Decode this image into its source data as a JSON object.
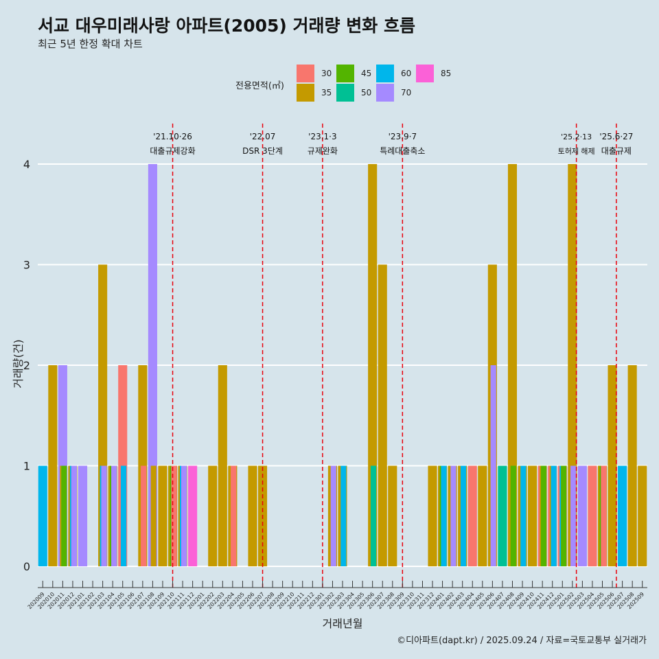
{
  "title": "서교 대우미래사랑 아파트(2005) 거래량 변화 흐름",
  "subtitle": "최근 5년 한정 확대 차트",
  "caption": "©디아파트(dapt.kr) / 2025.09.24 / 자료=국토교통부 실거래가",
  "legend": {
    "title": "전용면적(㎡)",
    "items": [
      {
        "label": "30",
        "color": "#f8766d"
      },
      {
        "label": "35",
        "color": "#c49a00"
      },
      {
        "label": "45",
        "color": "#53b400"
      },
      {
        "label": "50",
        "color": "#00c094"
      },
      {
        "label": "60",
        "color": "#00b6eb"
      },
      {
        "label": "70",
        "color": "#a58aff"
      },
      {
        "label": "85",
        "color": "#fb61d7"
      }
    ]
  },
  "chart_data": {
    "type": "bar",
    "title": "서교 대우미래사랑 아파트(2005) 거래량 변화 흐름",
    "xlabel": "거래년월",
    "ylabel": "거래량(건)",
    "ylim": [
      0,
      4
    ],
    "yticks": [
      0,
      1,
      2,
      3,
      4
    ],
    "grid": true,
    "legend_position": "top",
    "categories": [
      "202009",
      "202010",
      "202011",
      "202012",
      "202101",
      "202102",
      "202103",
      "202104",
      "202105",
      "202106",
      "202107",
      "202108",
      "202109",
      "202110",
      "202111",
      "202112",
      "202201",
      "202202",
      "202203",
      "202204",
      "202205",
      "202206",
      "202207",
      "202208",
      "202209",
      "202210",
      "202211",
      "202212",
      "202301",
      "202302",
      "202303",
      "202304",
      "202305",
      "202306",
      "202307",
      "202308",
      "202309",
      "202310",
      "202311",
      "202312",
      "202401",
      "202402",
      "202403",
      "202404",
      "202405",
      "202406",
      "202407",
      "202408",
      "202409",
      "202410",
      "202411",
      "202412",
      "202501",
      "202502",
      "202503",
      "202504",
      "202505",
      "202506",
      "202507",
      "202508",
      "202509"
    ],
    "bars": [
      {
        "month": "202009",
        "segments": [
          {
            "area": "60",
            "count": 1
          }
        ]
      },
      {
        "month": "202010",
        "segments": [
          {
            "area": "35",
            "count": 2
          }
        ]
      },
      {
        "month": "202011",
        "segments": [
          {
            "area": "35",
            "count": 1
          },
          {
            "area": "45",
            "count": 1
          },
          {
            "area": "70",
            "count": 2
          }
        ]
      },
      {
        "month": "202012",
        "segments": [
          {
            "area": "35",
            "count": 1
          },
          {
            "area": "60",
            "count": 1
          },
          {
            "area": "70",
            "count": 1
          }
        ]
      },
      {
        "month": "202101",
        "segments": [
          {
            "area": "70",
            "count": 1
          }
        ]
      },
      {
        "month": "202102",
        "segments": []
      },
      {
        "month": "202103",
        "segments": [
          {
            "area": "35",
            "count": 3
          },
          {
            "area": "60",
            "count": 1
          },
          {
            "area": "70",
            "count": 1
          }
        ]
      },
      {
        "month": "202104",
        "segments": [
          {
            "area": "35",
            "count": 1
          },
          {
            "area": "45",
            "count": 1
          },
          {
            "area": "70",
            "count": 1
          }
        ]
      },
      {
        "month": "202105",
        "segments": [
          {
            "area": "30",
            "count": 2
          },
          {
            "area": "60",
            "count": 1
          }
        ]
      },
      {
        "month": "202106",
        "segments": []
      },
      {
        "month": "202107",
        "segments": [
          {
            "area": "30",
            "count": 1
          },
          {
            "area": "35",
            "count": 2
          }
        ]
      },
      {
        "month": "202108",
        "segments": [
          {
            "area": "35",
            "count": 1
          },
          {
            "area": "70",
            "count": 4
          }
        ]
      },
      {
        "month": "202109",
        "segments": [
          {
            "area": "35",
            "count": 1
          }
        ]
      },
      {
        "month": "202110",
        "segments": [
          {
            "area": "35",
            "count": 1
          },
          {
            "area": "45",
            "count": 1
          },
          {
            "area": "30",
            "count": 1
          }
        ]
      },
      {
        "month": "202111",
        "segments": [
          {
            "area": "35",
            "count": 1
          },
          {
            "area": "60",
            "count": 1
          },
          {
            "area": "70",
            "count": 1
          }
        ]
      },
      {
        "month": "202112",
        "segments": [
          {
            "area": "85",
            "count": 1
          }
        ]
      },
      {
        "month": "202201",
        "segments": []
      },
      {
        "month": "202202",
        "segments": [
          {
            "area": "35",
            "count": 1
          }
        ]
      },
      {
        "month": "202203",
        "segments": [
          {
            "area": "35",
            "count": 2
          }
        ]
      },
      {
        "month": "202204",
        "segments": [
          {
            "area": "35",
            "count": 1
          },
          {
            "area": "30",
            "count": 1
          }
        ]
      },
      {
        "month": "202205",
        "segments": []
      },
      {
        "month": "202206",
        "segments": [
          {
            "area": "35",
            "count": 1
          }
        ]
      },
      {
        "month": "202207",
        "segments": [
          {
            "area": "35",
            "count": 1
          }
        ]
      },
      {
        "month": "202208",
        "segments": []
      },
      {
        "month": "202209",
        "segments": []
      },
      {
        "month": "202210",
        "segments": []
      },
      {
        "month": "202211",
        "segments": []
      },
      {
        "month": "202212",
        "segments": []
      },
      {
        "month": "202301",
        "segments": []
      },
      {
        "month": "202302",
        "segments": [
          {
            "area": "35",
            "count": 1
          },
          {
            "area": "70",
            "count": 1
          }
        ]
      },
      {
        "month": "202303",
        "segments": [
          {
            "area": "35",
            "count": 1
          },
          {
            "area": "60",
            "count": 1
          }
        ]
      },
      {
        "month": "202304",
        "segments": []
      },
      {
        "month": "202305",
        "segments": []
      },
      {
        "month": "202306",
        "segments": [
          {
            "area": "35",
            "count": 4
          },
          {
            "area": "50",
            "count": 1
          }
        ]
      },
      {
        "month": "202307",
        "segments": [
          {
            "area": "35",
            "count": 3
          }
        ]
      },
      {
        "month": "202308",
        "segments": [
          {
            "area": "35",
            "count": 1
          }
        ]
      },
      {
        "month": "202309",
        "segments": []
      },
      {
        "month": "202310",
        "segments": []
      },
      {
        "month": "202311",
        "segments": []
      },
      {
        "month": "202312",
        "segments": [
          {
            "area": "35",
            "count": 1
          }
        ]
      },
      {
        "month": "202401",
        "segments": [
          {
            "area": "35",
            "count": 1
          },
          {
            "area": "45",
            "count": 1
          },
          {
            "area": "60",
            "count": 1
          }
        ]
      },
      {
        "month": "202402",
        "segments": [
          {
            "area": "35",
            "count": 1
          },
          {
            "area": "70",
            "count": 1
          }
        ]
      },
      {
        "month": "202403",
        "segments": [
          {
            "area": "35",
            "count": 1
          },
          {
            "area": "60",
            "count": 1
          }
        ]
      },
      {
        "month": "202404",
        "segments": [
          {
            "area": "30",
            "count": 1
          }
        ]
      },
      {
        "month": "202405",
        "segments": [
          {
            "area": "35",
            "count": 1
          }
        ]
      },
      {
        "month": "202406",
        "segments": [
          {
            "area": "35",
            "count": 3
          },
          {
            "area": "70",
            "count": 2
          }
        ]
      },
      {
        "month": "202407",
        "segments": [
          {
            "area": "50",
            "count": 1
          }
        ]
      },
      {
        "month": "202408",
        "segments": [
          {
            "area": "35",
            "count": 4
          },
          {
            "area": "45",
            "count": 1
          }
        ]
      },
      {
        "month": "202409",
        "segments": [
          {
            "area": "35",
            "count": 1
          },
          {
            "area": "60",
            "count": 1
          }
        ]
      },
      {
        "month": "202410",
        "segments": [
          {
            "area": "35",
            "count": 1
          }
        ]
      },
      {
        "month": "202411",
        "segments": [
          {
            "area": "30",
            "count": 1
          },
          {
            "area": "35",
            "count": 1
          },
          {
            "area": "45",
            "count": 1
          }
        ]
      },
      {
        "month": "202412",
        "segments": [
          {
            "area": "30",
            "count": 1
          },
          {
            "area": "35",
            "count": 1
          },
          {
            "area": "60",
            "count": 1
          }
        ]
      },
      {
        "month": "202501",
        "segments": [
          {
            "area": "30",
            "count": 1
          },
          {
            "area": "60",
            "count": 1
          },
          {
            "area": "45",
            "count": 1
          }
        ]
      },
      {
        "month": "202502",
        "segments": [
          {
            "area": "35",
            "count": 4
          },
          {
            "area": "70",
            "count": 1
          }
        ]
      },
      {
        "month": "202503",
        "segments": [
          {
            "area": "70",
            "count": 1
          }
        ]
      },
      {
        "month": "202504",
        "segments": [
          {
            "area": "30",
            "count": 1
          }
        ]
      },
      {
        "month": "202505",
        "segments": [
          {
            "area": "35",
            "count": 1
          },
          {
            "area": "45",
            "count": 1
          },
          {
            "area": "30",
            "count": 1
          }
        ]
      },
      {
        "month": "202506",
        "segments": [
          {
            "area": "35",
            "count": 2
          }
        ]
      },
      {
        "month": "202507",
        "segments": [
          {
            "area": "60",
            "count": 1
          }
        ]
      },
      {
        "month": "202508",
        "segments": [
          {
            "area": "35",
            "count": 2
          }
        ]
      },
      {
        "month": "202509",
        "segments": [
          {
            "area": "35",
            "count": 1
          }
        ]
      }
    ],
    "events": [
      {
        "month_index": 13.0,
        "date": "'21.10·26",
        "label": "대출규제강화"
      },
      {
        "month_index": 22.0,
        "date": "'22.07",
        "label": "DSR 3단계"
      },
      {
        "month_index": 28.0,
        "date": "'23.1·3",
        "label": "규제완화"
      },
      {
        "month_index": 36.0,
        "date": "'23.9·7",
        "label": "특례대출축소"
      },
      {
        "month_index": 53.4,
        "date": "'25.2·13",
        "label": "토허제 해제"
      },
      {
        "month_index": 57.4,
        "date": "'25.6·27",
        "label": "대출규제"
      }
    ]
  }
}
